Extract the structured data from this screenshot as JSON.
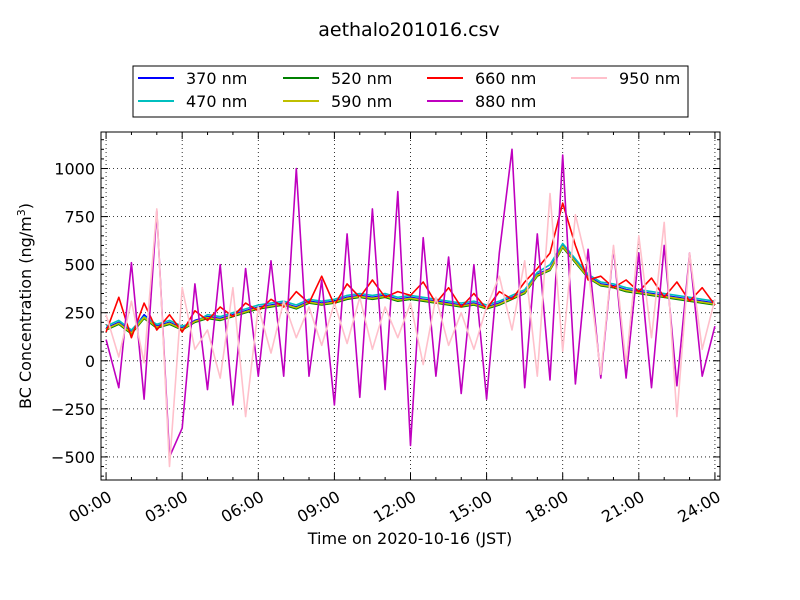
{
  "chart_data": {
    "type": "line",
    "title": "aethalo201016.csv",
    "xlabel": "Time on 2020-10-16 (JST)",
    "ylabel": "BC Concentration (ng/m",
    "ylabel_sup": "3",
    "ylabel_tail": ")",
    "xlim": [
      -0.2,
      24.2
    ],
    "ylim": [
      -620,
      1190
    ],
    "xticks": [
      {
        "value": 0,
        "label": "00:00"
      },
      {
        "value": 3,
        "label": "03:00"
      },
      {
        "value": 6,
        "label": "06:00"
      },
      {
        "value": 9,
        "label": "09:00"
      },
      {
        "value": 12,
        "label": "12:00"
      },
      {
        "value": 15,
        "label": "15:00"
      },
      {
        "value": 18,
        "label": "18:00"
      },
      {
        "value": 21,
        "label": "21:00"
      },
      {
        "value": 24,
        "label": "24:00"
      }
    ],
    "yticks": [
      {
        "value": -500,
        "label": "−500"
      },
      {
        "value": -250,
        "label": "−250"
      },
      {
        "value": 0,
        "label": "0"
      },
      {
        "value": 250,
        "label": "250"
      },
      {
        "value": 500,
        "label": "500"
      },
      {
        "value": 750,
        "label": "750"
      },
      {
        "value": 1000,
        "label": "1000"
      }
    ],
    "grid": true,
    "legend_position": "top, above plot, 4 columns",
    "series": [
      {
        "name": "370 nm",
        "color": "#0000ff",
        "x": [
          0,
          0.5,
          1,
          1.5,
          2,
          2.5,
          3,
          3.5,
          4,
          4.5,
          5,
          5.5,
          6,
          6.5,
          7,
          7.5,
          8,
          8.5,
          9,
          9.5,
          10,
          10.5,
          11,
          11.5,
          12,
          12.5,
          13,
          13.5,
          14,
          14.5,
          15,
          15.5,
          16,
          16.5,
          17,
          17.5,
          18,
          18.5,
          19,
          19.5,
          20,
          20.5,
          21,
          21.5,
          22,
          22.5,
          23,
          23.5,
          24
        ],
        "values": [
          170,
          200,
          150,
          240,
          180,
          200,
          170,
          210,
          230,
          220,
          240,
          260,
          280,
          290,
          300,
          280,
          310,
          300,
          310,
          330,
          340,
          330,
          340,
          320,
          330,
          320,
          310,
          300,
          290,
          300,
          280,
          300,
          330,
          360,
          450,
          480,
          600,
          520,
          440,
          400,
          390,
          370,
          360,
          350,
          340,
          330,
          320,
          310,
          300
        ]
      },
      {
        "name": "470 nm",
        "color": "#00bfbf",
        "x": [
          0,
          0.5,
          1,
          1.5,
          2,
          2.5,
          3,
          3.5,
          4,
          4.5,
          5,
          5.5,
          6,
          6.5,
          7,
          7.5,
          8,
          8.5,
          9,
          9.5,
          10,
          10.5,
          11,
          11.5,
          12,
          12.5,
          13,
          13.5,
          14,
          14.5,
          15,
          15.5,
          16,
          16.5,
          17,
          17.5,
          18,
          18.5,
          19,
          19.5,
          20,
          20.5,
          21,
          21.5,
          22,
          22.5,
          23,
          23.5,
          24
        ],
        "values": [
          180,
          210,
          160,
          230,
          190,
          210,
          180,
          200,
          240,
          230,
          250,
          270,
          290,
          300,
          310,
          290,
          320,
          310,
          320,
          340,
          350,
          340,
          350,
          330,
          340,
          330,
          320,
          310,
          300,
          310,
          290,
          310,
          340,
          370,
          460,
          500,
          610,
          530,
          450,
          410,
          400,
          380,
          370,
          360,
          350,
          340,
          330,
          320,
          310
        ]
      },
      {
        "name": "520 nm",
        "color": "#008000",
        "x": [
          0,
          0.5,
          1,
          1.5,
          2,
          2.5,
          3,
          3.5,
          4,
          4.5,
          5,
          5.5,
          6,
          6.5,
          7,
          7.5,
          8,
          8.5,
          9,
          9.5,
          10,
          10.5,
          11,
          11.5,
          12,
          12.5,
          13,
          13.5,
          14,
          14.5,
          15,
          15.5,
          16,
          16.5,
          17,
          17.5,
          18,
          18.5,
          19,
          19.5,
          20,
          20.5,
          21,
          21.5,
          22,
          22.5,
          23,
          23.5,
          24
        ],
        "values": [
          160,
          190,
          140,
          220,
          170,
          190,
          160,
          200,
          220,
          210,
          230,
          250,
          270,
          280,
          290,
          270,
          300,
          290,
          300,
          320,
          330,
          320,
          330,
          310,
          320,
          310,
          300,
          290,
          280,
          290,
          270,
          290,
          320,
          350,
          440,
          470,
          590,
          510,
          430,
          390,
          380,
          360,
          350,
          340,
          330,
          320,
          310,
          300,
          290
        ]
      },
      {
        "name": "590 nm",
        "color": "#bfbf00",
        "x": [
          0,
          0.5,
          1,
          1.5,
          2,
          2.5,
          3,
          3.5,
          4,
          4.5,
          5,
          5.5,
          6,
          6.5,
          7,
          7.5,
          8,
          8.5,
          9,
          9.5,
          10,
          10.5,
          11,
          11.5,
          12,
          12.5,
          13,
          13.5,
          14,
          14.5,
          15,
          15.5,
          16,
          16.5,
          17,
          17.5,
          18,
          18.5,
          19,
          19.5,
          20,
          20.5,
          21,
          21.5,
          22,
          22.5,
          23,
          23.5,
          24
        ],
        "values": [
          165,
          195,
          145,
          225,
          175,
          195,
          165,
          205,
          225,
          215,
          235,
          255,
          275,
          285,
          295,
          275,
          305,
          295,
          305,
          325,
          335,
          325,
          335,
          315,
          325,
          315,
          305,
          295,
          285,
          295,
          275,
          295,
          325,
          355,
          445,
          475,
          595,
          515,
          435,
          395,
          385,
          365,
          355,
          345,
          335,
          325,
          315,
          305,
          295
        ]
      },
      {
        "name": "660 nm",
        "color": "#ff0000",
        "x": [
          0,
          0.5,
          1,
          1.5,
          2,
          2.5,
          3,
          3.5,
          4,
          4.5,
          5,
          5.5,
          6,
          6.5,
          7,
          7.5,
          8,
          8.5,
          9,
          9.5,
          10,
          10.5,
          11,
          11.5,
          12,
          12.5,
          13,
          13.5,
          14,
          14.5,
          15,
          15.5,
          16,
          16.5,
          17,
          17.5,
          18,
          18.5,
          19,
          19.5,
          20,
          20.5,
          21,
          21.5,
          22,
          22.5,
          23,
          23.5,
          24
        ],
        "values": [
          150,
          330,
          120,
          300,
          160,
          240,
          150,
          260,
          210,
          280,
          230,
          300,
          260,
          320,
          280,
          360,
          300,
          440,
          290,
          400,
          330,
          420,
          330,
          360,
          340,
          410,
          300,
          380,
          280,
          350,
          270,
          360,
          320,
          410,
          480,
          560,
          820,
          600,
          420,
          440,
          380,
          420,
          360,
          430,
          330,
          410,
          310,
          380,
          290
        ]
      },
      {
        "name": "880 nm",
        "color": "#bf00bf",
        "x": [
          0,
          0.5,
          1,
          1.5,
          2,
          2.5,
          3,
          3.5,
          4,
          4.5,
          5,
          5.5,
          6,
          6.5,
          7,
          7.5,
          8,
          8.5,
          9,
          9.5,
          10,
          10.5,
          11,
          11.5,
          12,
          12.5,
          13,
          13.5,
          14,
          14.5,
          15,
          15.5,
          16,
          16.5,
          17,
          17.5,
          18,
          18.5,
          19,
          19.5,
          20,
          20.5,
          21,
          21.5,
          22,
          22.5,
          23,
          23.5,
          24
        ],
        "values": [
          110,
          -140,
          510,
          -200,
          780,
          -500,
          -350,
          400,
          -150,
          500,
          -230,
          480,
          -80,
          520,
          -80,
          1000,
          -80,
          420,
          -230,
          660,
          -190,
          790,
          -150,
          880,
          -440,
          640,
          -80,
          540,
          -170,
          500,
          -200,
          560,
          1100,
          -140,
          660,
          -100,
          1070,
          -120,
          580,
          -90,
          590,
          -90,
          560,
          -140,
          600,
          -130,
          560,
          -80,
          180
        ]
      },
      {
        "name": "950 nm",
        "color": "#ffc0cb",
        "x": [
          0,
          0.5,
          1,
          1.5,
          2,
          2.5,
          3,
          3.5,
          4,
          4.5,
          5,
          5.5,
          6,
          6.5,
          7,
          7.5,
          8,
          8.5,
          9,
          9.5,
          10,
          10.5,
          11,
          11.5,
          12,
          12.5,
          13,
          13.5,
          14,
          14.5,
          15,
          15.5,
          16,
          16.5,
          17,
          17.5,
          18,
          18.5,
          19,
          19.5,
          20,
          20.5,
          21,
          21.5,
          22,
          22.5,
          23,
          23.5,
          24
        ],
        "values": [
          240,
          20,
          310,
          -10,
          790,
          -550,
          380,
          60,
          160,
          -90,
          380,
          -290,
          280,
          40,
          310,
          120,
          280,
          80,
          300,
          90,
          330,
          60,
          280,
          120,
          300,
          -20,
          330,
          80,
          250,
          60,
          280,
          440,
          160,
          520,
          -80,
          870,
          50,
          760,
          480,
          -70,
          600,
          -20,
          650,
          120,
          720,
          -290,
          560,
          60,
          320
        ]
      }
    ]
  }
}
